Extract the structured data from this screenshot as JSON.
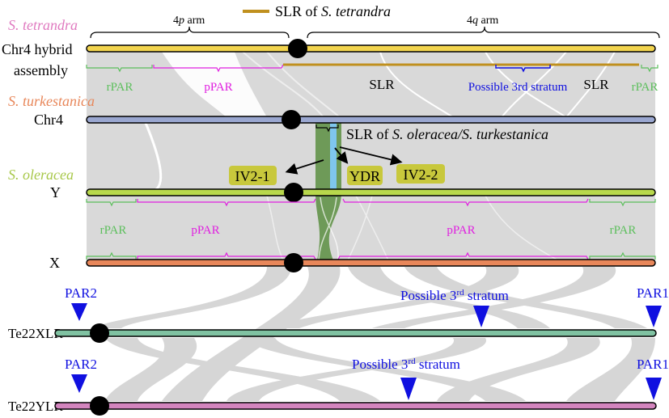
{
  "legend": {
    "label_prefix": "SLR of ",
    "label_species": "S. tetrandra",
    "color": "#c0901e"
  },
  "tetrandra": {
    "species": "S. tetrandra",
    "chrom_line1": "Chr4 hybrid",
    "chrom_line2": "assembly",
    "arm_p_num": "4",
    "arm_p_letter": "p",
    "arm_p_word": " arm",
    "arm_q_num": "4",
    "arm_q_letter": "q",
    "arm_q_word": " arm",
    "regions": {
      "rpar_left": "rPAR",
      "ppar": "pPAR",
      "slr_1": "SLR",
      "stratum": "Possible 3rd stratum",
      "slr_2": "SLR",
      "rpar_right": "rPAR"
    },
    "color": "#f2d44e"
  },
  "turkestanica": {
    "species": "S. turkestanica",
    "chrom": "Chr4",
    "color": "#9aa7d0",
    "slr_prefix": "SLR of ",
    "slr_species": "S. oleracea/S. turkestanica"
  },
  "boxes": {
    "iv2_1": "IV2-1",
    "ydr": "YDR",
    "iv2_2": "IV2-2"
  },
  "oleracea": {
    "species": "S. oleracea",
    "y_chrom": "Y",
    "x_chrom": "X",
    "y_color": "#b8d84c",
    "x_color": "#e8875a",
    "regions": {
      "rpar_left": "rPAR",
      "ppar_left": "pPAR",
      "ppar_right": "pPAR",
      "rpar_right": "rPAR"
    }
  },
  "te22": {
    "xlr": {
      "label": "Te22XLR",
      "color": "#80c2a2",
      "par2": "PAR2",
      "stratum_prefix": "Possible 3",
      "stratum_sup": "rd",
      "stratum_suffix": " stratum",
      "par1": "PAR1"
    },
    "ylr": {
      "label": "Te22YLR",
      "color": "#d385be",
      "par2": "PAR2",
      "stratum_prefix": "Possible 3",
      "stratum_sup": "rd",
      "stratum_suffix": " stratum",
      "par1": "PAR1"
    }
  },
  "colors": {
    "rpar": "#5cbf5c",
    "ppar": "#e020e0",
    "stratum": "#1010e0",
    "slr_band": "#6e9a58",
    "ydr_band": "#7fc6ee",
    "box": "#c8c83c",
    "ribbon": "#d9d9d9"
  }
}
